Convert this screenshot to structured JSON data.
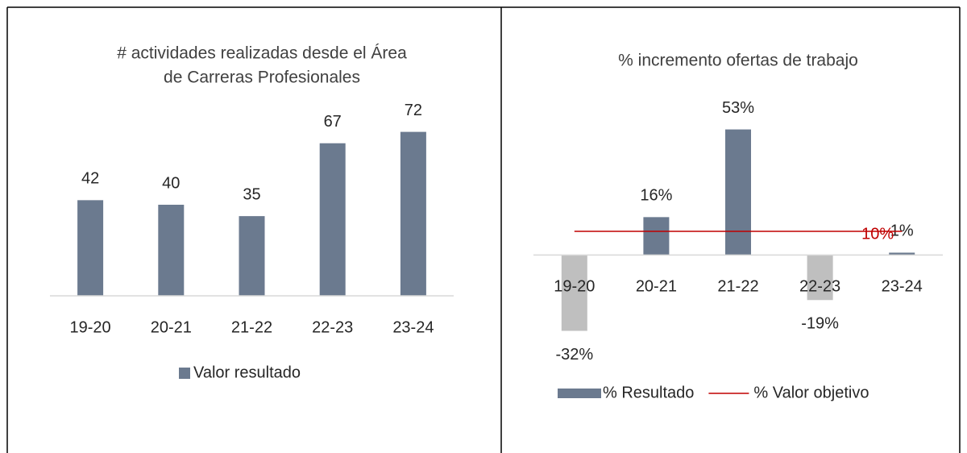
{
  "chart_data": [
    {
      "type": "bar",
      "title": [
        "# actividades realizadas desde el Área",
        "de Carreras Profesionales"
      ],
      "categories": [
        "19-20",
        "20-21",
        "21-22",
        "22-23",
        "23-24"
      ],
      "series": [
        {
          "name": "Valor resultado",
          "color": "#6b7a8f",
          "values": [
            42,
            40,
            35,
            67,
            72
          ]
        }
      ],
      "ylim": [
        0,
        80
      ]
    },
    {
      "type": "bar",
      "title": [
        "% incremento ofertas de trabajo"
      ],
      "categories": [
        "19-20",
        "20-21",
        "21-22",
        "22-23",
        "23-24"
      ],
      "series": [
        {
          "name": "% Resultado",
          "color": "#6b7a8f",
          "negative_color": "#bfbfbf",
          "values": [
            -32,
            16,
            53,
            -19,
            1
          ],
          "value_labels": [
            "-32%",
            "16%",
            "53%",
            "-19%",
            "1%"
          ]
        },
        {
          "name": "% Valor objetivo",
          "type": "line",
          "color": "#c00000",
          "values": [
            10,
            10,
            10,
            10,
            10
          ],
          "label": "10%"
        }
      ],
      "ylim": [
        -40,
        60
      ]
    }
  ]
}
